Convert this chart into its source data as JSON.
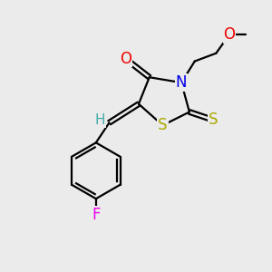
{
  "background_color": "#ebebeb",
  "atom_colors": {
    "C": "#000000",
    "N": "#0000ee",
    "O": "#ee0000",
    "S": "#aaaa00",
    "F": "#ee00ee",
    "H": "#44aaaa"
  },
  "figsize": [
    3.0,
    3.0
  ],
  "dpi": 100
}
